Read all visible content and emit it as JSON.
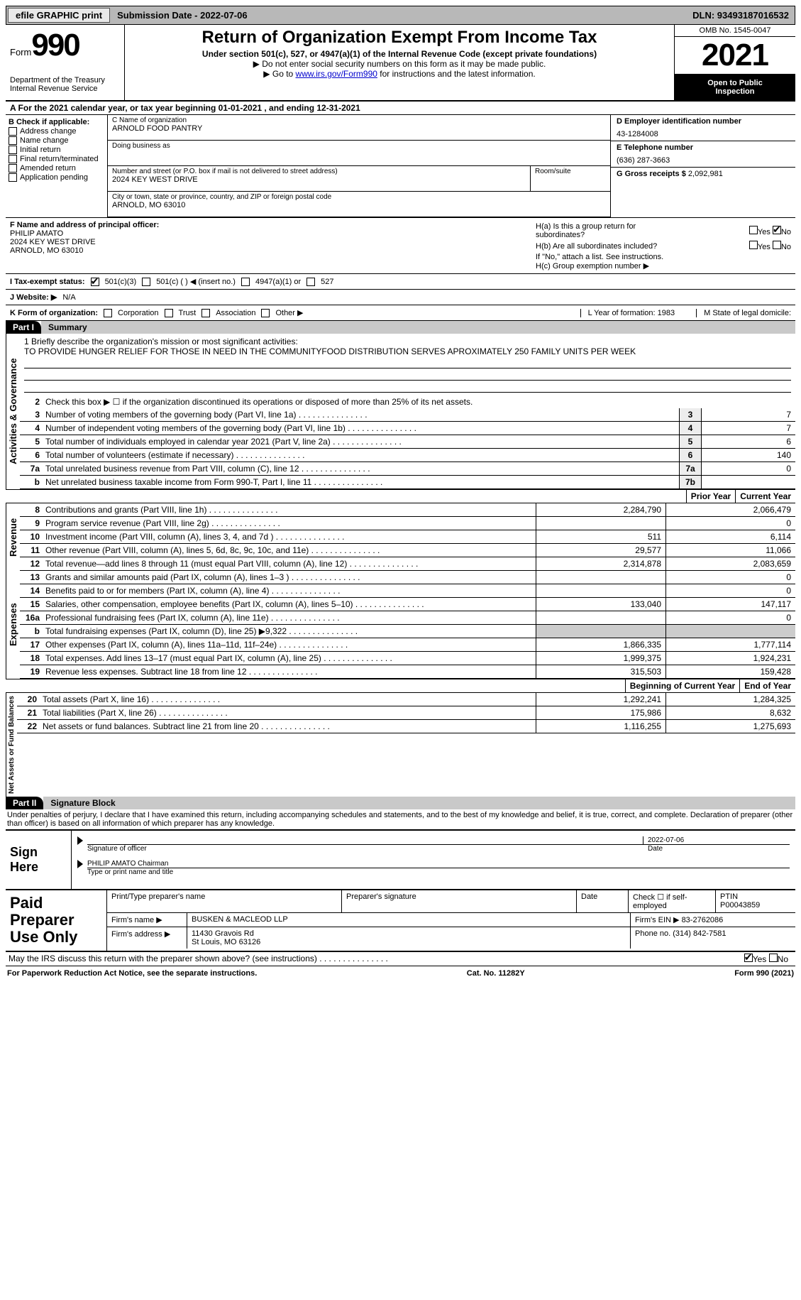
{
  "topbar": {
    "efile": "efile GRAPHIC print",
    "sub_label": "Submission Date - 2022-07-06",
    "dln": "DLN: 93493187016532"
  },
  "header": {
    "form_label": "Form",
    "form_num": "990",
    "dept": "Department of the Treasury",
    "irs": "Internal Revenue Service",
    "title": "Return of Organization Exempt From Income Tax",
    "sub": "Under section 501(c), 527, or 4947(a)(1) of the Internal Revenue Code (except private foundations)",
    "note1": "▶ Do not enter social security numbers on this form as it may be made public.",
    "note2_pre": "▶ Go to ",
    "note2_link": "www.irs.gov/Form990",
    "note2_post": " for instructions and the latest information.",
    "omb": "OMB No. 1545-0047",
    "year": "2021",
    "inspect1": "Open to Public",
    "inspect2": "Inspection"
  },
  "rowA": "A  For the 2021 calendar year, or tax year beginning 01-01-2021    , and ending 12-31-2021",
  "colB": {
    "hdr": "B Check if applicable:",
    "items": [
      "Address change",
      "Name change",
      "Initial return",
      "Final return/terminated",
      "Amended return",
      "Application pending"
    ]
  },
  "colC": {
    "name_lbl": "C Name of organization",
    "name": "ARNOLD FOOD PANTRY",
    "dba_lbl": "Doing business as",
    "addr_lbl": "Number and street (or P.O. box if mail is not delivered to street address)",
    "room_lbl": "Room/suite",
    "addr": "2024 KEY WEST DRIVE",
    "city_lbl": "City or town, state or province, country, and ZIP or foreign postal code",
    "city": "ARNOLD, MO  63010"
  },
  "colD": {
    "d_lbl": "D Employer identification number",
    "ein": "43-1284008",
    "e_lbl": "E Telephone number",
    "phone": "(636) 287-3663",
    "g_lbl": "G Gross receipts $",
    "gross": "2,092,981"
  },
  "colF": {
    "lbl": "F  Name and address of principal officer:",
    "name": "PHILIP AMATO",
    "addr1": "2024 KEY WEST DRIVE",
    "addr2": "ARNOLD, MO  63010"
  },
  "colH": {
    "ha": "H(a)  Is this a group return for",
    "ha2": "subordinates?",
    "hb": "H(b)  Are all subordinates included?",
    "hbnote": "If \"No,\" attach a list. See instructions.",
    "hc": "H(c)  Group exemption number ▶",
    "yes": "Yes",
    "no": "No"
  },
  "rowI": {
    "lbl": "I   Tax-exempt status:",
    "c3": "501(c)(3)",
    "c": "501(c) (  ) ◀ (insert no.)",
    "a1": "4947(a)(1) or",
    "s527": "527"
  },
  "rowJ": {
    "lbl": "J   Website: ▶",
    "val": "N/A"
  },
  "rowK": {
    "lbl": "K Form of organization:",
    "opts": [
      "Corporation",
      "Trust",
      "Association",
      "Other ▶"
    ],
    "l": "L Year of formation: 1983",
    "m": "M State of legal domicile:"
  },
  "part1": {
    "lab": "Part I",
    "txt": "Summary"
  },
  "mission": {
    "l1lbl": "1   Briefly describe the organization's mission or most significant activities:",
    "text": "TO PROVIDE HUNGER RELIEF FOR THOSE IN NEED IN THE COMMUNITYFOOD DISTRIBUTION SERVES APROXIMATELY 250 FAMILY UNITS PER WEEK"
  },
  "gov": {
    "l2": "Check this box ▶ ☐  if the organization discontinued its operations or disposed of more than 25% of its net assets.",
    "lines": [
      {
        "n": "3",
        "d": "Number of voting members of the governing body (Part VI, line 1a)",
        "bn": "3",
        "v": "7"
      },
      {
        "n": "4",
        "d": "Number of independent voting members of the governing body (Part VI, line 1b)",
        "bn": "4",
        "v": "7"
      },
      {
        "n": "5",
        "d": "Total number of individuals employed in calendar year 2021 (Part V, line 2a)",
        "bn": "5",
        "v": "6"
      },
      {
        "n": "6",
        "d": "Total number of volunteers (estimate if necessary)",
        "bn": "6",
        "v": "140"
      },
      {
        "n": "7a",
        "d": "Total unrelated business revenue from Part VIII, column (C), line 12",
        "bn": "7a",
        "v": "0"
      },
      {
        "n": "b",
        "d": "Net unrelated business taxable income from Form 990-T, Part I, line 11",
        "bn": "7b",
        "v": ""
      }
    ]
  },
  "cols": {
    "py": "Prior Year",
    "cy": "Current Year",
    "bcy": "Beginning of Current Year",
    "eoy": "End of Year"
  },
  "rev": [
    {
      "n": "8",
      "d": "Contributions and grants (Part VIII, line 1h)",
      "p": "2,284,790",
      "c": "2,066,479"
    },
    {
      "n": "9",
      "d": "Program service revenue (Part VIII, line 2g)",
      "p": "",
      "c": "0"
    },
    {
      "n": "10",
      "d": "Investment income (Part VIII, column (A), lines 3, 4, and 7d )",
      "p": "511",
      "c": "6,114"
    },
    {
      "n": "11",
      "d": "Other revenue (Part VIII, column (A), lines 5, 6d, 8c, 9c, 10c, and 11e)",
      "p": "29,577",
      "c": "11,066"
    },
    {
      "n": "12",
      "d": "Total revenue—add lines 8 through 11 (must equal Part VIII, column (A), line 12)",
      "p": "2,314,878",
      "c": "2,083,659"
    }
  ],
  "exp": [
    {
      "n": "13",
      "d": "Grants and similar amounts paid (Part IX, column (A), lines 1–3 )",
      "p": "",
      "c": "0"
    },
    {
      "n": "14",
      "d": "Benefits paid to or for members (Part IX, column (A), line 4)",
      "p": "",
      "c": "0"
    },
    {
      "n": "15",
      "d": "Salaries, other compensation, employee benefits (Part IX, column (A), lines 5–10)",
      "p": "133,040",
      "c": "147,117"
    },
    {
      "n": "16a",
      "d": "Professional fundraising fees (Part IX, column (A), line 11e)",
      "p": "",
      "c": "0"
    },
    {
      "n": "b",
      "d": "Total fundraising expenses (Part IX, column (D), line 25) ▶9,322",
      "p": "SHADE",
      "c": "SHADE"
    },
    {
      "n": "17",
      "d": "Other expenses (Part IX, column (A), lines 11a–11d, 11f–24e)",
      "p": "1,866,335",
      "c": "1,777,114"
    },
    {
      "n": "18",
      "d": "Total expenses. Add lines 13–17 (must equal Part IX, column (A), line 25)",
      "p": "1,999,375",
      "c": "1,924,231"
    },
    {
      "n": "19",
      "d": "Revenue less expenses. Subtract line 18 from line 12",
      "p": "315,503",
      "c": "159,428"
    }
  ],
  "net": [
    {
      "n": "20",
      "d": "Total assets (Part X, line 16)",
      "p": "1,292,241",
      "c": "1,284,325"
    },
    {
      "n": "21",
      "d": "Total liabilities (Part X, line 26)",
      "p": "175,986",
      "c": "8,632"
    },
    {
      "n": "22",
      "d": "Net assets or fund balances. Subtract line 21 from line 20",
      "p": "1,116,255",
      "c": "1,275,693"
    }
  ],
  "vlabels": {
    "gov": "Activities & Governance",
    "rev": "Revenue",
    "exp": "Expenses",
    "net": "Net Assets or Fund Balances"
  },
  "part2": {
    "lab": "Part II",
    "txt": "Signature Block"
  },
  "penalty": "Under penalties of perjury, I declare that I have examined this return, including accompanying schedules and statements, and to the best of my knowledge and belief, it is true, correct, and complete. Declaration of preparer (other than officer) is based on all information of which preparer has any knowledge.",
  "sign": {
    "here": "Sign Here",
    "sig_off": "Signature of officer",
    "date": "Date",
    "datev": "2022-07-06",
    "name": "PHILIP AMATO  Chairman",
    "name_lbl": "Type or print name and title"
  },
  "paid": {
    "lbl": "Paid Preparer Use Only",
    "h1": "Print/Type preparer's name",
    "h2": "Preparer's signature",
    "h3": "Date",
    "h4": "Check ☐ if self-employed",
    "h5": "PTIN",
    "ptin": "P00043859",
    "firm_lbl": "Firm's name   ▶",
    "firm": "BUSKEN & MACLEOD LLP",
    "ein_lbl": "Firm's EIN ▶",
    "ein": "83-2762086",
    "addr_lbl": "Firm's address ▶",
    "addr1": "11430 Gravois Rd",
    "addr2": "St Louis, MO  63126",
    "phone_lbl": "Phone no.",
    "phone": "(314) 842-7581"
  },
  "discuss": "May the IRS discuss this return with the preparer shown above? (see instructions)",
  "footer": {
    "pra": "For Paperwork Reduction Act Notice, see the separate instructions.",
    "cat": "Cat. No. 11282Y",
    "form": "Form 990 (2021)"
  }
}
